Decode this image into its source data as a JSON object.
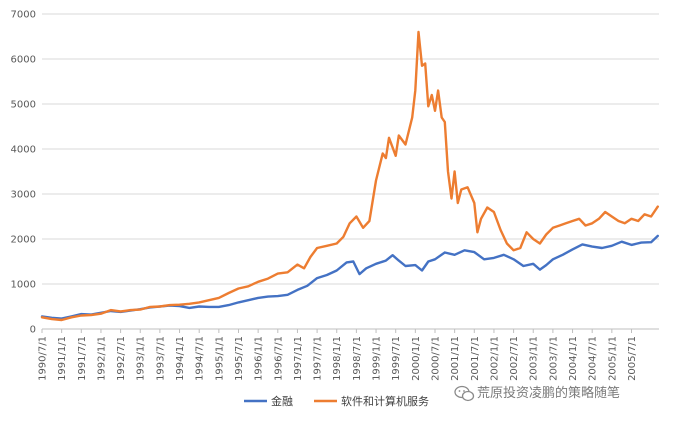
{
  "chart_data": {
    "type": "line",
    "title": "",
    "xlabel": "",
    "ylabel": "",
    "ylim": [
      0,
      7000
    ],
    "yticks": [
      0,
      1000,
      2000,
      3000,
      4000,
      5000,
      6000,
      7000
    ],
    "grid": "horizontal",
    "legend_position": "bottom",
    "x_tick_labels": [
      "1990/7/1",
      "1991/1/1",
      "1991/7/1",
      "1992/1/1",
      "1992/7/1",
      "1993/1/1",
      "1993/7/1",
      "1994/1/1",
      "1994/7/1",
      "1995/1/1",
      "1995/7/1",
      "1996/1/1",
      "1996/7/1",
      "1997/1/1",
      "1997/7/1",
      "1998/1/1",
      "1998/7/1",
      "1999/1/1",
      "1999/7/1",
      "2000/1/1",
      "2000/7/1",
      "2001/1/1",
      "2001/7/1",
      "2002/1/1",
      "2002/7/1",
      "2003/1/1",
      "2003/7/1",
      "2004/1/1",
      "2004/7/1",
      "2005/1/1",
      "2005/7/1"
    ],
    "series": [
      {
        "name": "金融",
        "color": "#4472C4",
        "points": [
          [
            1990.5,
            280
          ],
          [
            1990.75,
            250
          ],
          [
            1991.0,
            230
          ],
          [
            1991.25,
            280
          ],
          [
            1991.5,
            330
          ],
          [
            1991.75,
            320
          ],
          [
            1992.0,
            360
          ],
          [
            1992.25,
            400
          ],
          [
            1992.5,
            380
          ],
          [
            1992.75,
            410
          ],
          [
            1993.0,
            440
          ],
          [
            1993.25,
            480
          ],
          [
            1993.5,
            500
          ],
          [
            1993.75,
            520
          ],
          [
            1994.0,
            510
          ],
          [
            1994.25,
            470
          ],
          [
            1994.5,
            500
          ],
          [
            1994.75,
            490
          ],
          [
            1995.0,
            490
          ],
          [
            1995.25,
            530
          ],
          [
            1995.5,
            590
          ],
          [
            1995.75,
            640
          ],
          [
            1996.0,
            690
          ],
          [
            1996.25,
            720
          ],
          [
            1996.5,
            730
          ],
          [
            1996.75,
            760
          ],
          [
            1997.0,
            870
          ],
          [
            1997.25,
            960
          ],
          [
            1997.5,
            1130
          ],
          [
            1997.75,
            1200
          ],
          [
            1998.0,
            1300
          ],
          [
            1998.25,
            1480
          ],
          [
            1998.42,
            1500
          ],
          [
            1998.58,
            1220
          ],
          [
            1998.75,
            1350
          ],
          [
            1999.0,
            1450
          ],
          [
            1999.25,
            1520
          ],
          [
            1999.42,
            1640
          ],
          [
            1999.58,
            1520
          ],
          [
            1999.75,
            1400
          ],
          [
            2000.0,
            1420
          ],
          [
            2000.17,
            1300
          ],
          [
            2000.33,
            1500
          ],
          [
            2000.5,
            1550
          ],
          [
            2000.75,
            1700
          ],
          [
            2001.0,
            1650
          ],
          [
            2001.25,
            1750
          ],
          [
            2001.5,
            1710
          ],
          [
            2001.75,
            1550
          ],
          [
            2002.0,
            1580
          ],
          [
            2002.25,
            1650
          ],
          [
            2002.5,
            1550
          ],
          [
            2002.75,
            1400
          ],
          [
            2003.0,
            1450
          ],
          [
            2003.17,
            1320
          ],
          [
            2003.33,
            1420
          ],
          [
            2003.5,
            1550
          ],
          [
            2003.75,
            1650
          ],
          [
            2004.0,
            1770
          ],
          [
            2004.25,
            1880
          ],
          [
            2004.5,
            1830
          ],
          [
            2004.75,
            1800
          ],
          [
            2005.0,
            1850
          ],
          [
            2005.25,
            1940
          ],
          [
            2005.5,
            1870
          ],
          [
            2005.75,
            1920
          ],
          [
            2006.0,
            1930
          ],
          [
            2006.17,
            2070
          ]
        ]
      },
      {
        "name": "软件和计算机服务",
        "color": "#ED7D31",
        "points": [
          [
            1990.5,
            260
          ],
          [
            1990.75,
            220
          ],
          [
            1991.0,
            200
          ],
          [
            1991.25,
            260
          ],
          [
            1991.5,
            300
          ],
          [
            1991.75,
            310
          ],
          [
            1992.0,
            340
          ],
          [
            1992.25,
            420
          ],
          [
            1992.5,
            390
          ],
          [
            1992.75,
            420
          ],
          [
            1993.0,
            430
          ],
          [
            1993.25,
            490
          ],
          [
            1993.5,
            500
          ],
          [
            1993.75,
            530
          ],
          [
            1994.0,
            540
          ],
          [
            1994.25,
            560
          ],
          [
            1994.5,
            590
          ],
          [
            1994.75,
            640
          ],
          [
            1995.0,
            690
          ],
          [
            1995.25,
            800
          ],
          [
            1995.5,
            900
          ],
          [
            1995.75,
            950
          ],
          [
            1996.0,
            1050
          ],
          [
            1996.25,
            1120
          ],
          [
            1996.5,
            1230
          ],
          [
            1996.75,
            1260
          ],
          [
            1997.0,
            1430
          ],
          [
            1997.17,
            1350
          ],
          [
            1997.33,
            1600
          ],
          [
            1997.5,
            1800
          ],
          [
            1997.75,
            1850
          ],
          [
            1998.0,
            1900
          ],
          [
            1998.17,
            2050
          ],
          [
            1998.33,
            2350
          ],
          [
            1998.5,
            2500
          ],
          [
            1998.67,
            2250
          ],
          [
            1998.83,
            2400
          ],
          [
            1999.0,
            3300
          ],
          [
            1999.17,
            3900
          ],
          [
            1999.25,
            3800
          ],
          [
            1999.33,
            4250
          ],
          [
            1999.5,
            3850
          ],
          [
            1999.58,
            4300
          ],
          [
            1999.75,
            4100
          ],
          [
            1999.92,
            4700
          ],
          [
            2000.0,
            5300
          ],
          [
            2000.08,
            6600
          ],
          [
            2000.17,
            5850
          ],
          [
            2000.25,
            5900
          ],
          [
            2000.33,
            4950
          ],
          [
            2000.42,
            5200
          ],
          [
            2000.5,
            4850
          ],
          [
            2000.58,
            5300
          ],
          [
            2000.67,
            4700
          ],
          [
            2000.75,
            4600
          ],
          [
            2000.83,
            3500
          ],
          [
            2000.92,
            2900
          ],
          [
            2001.0,
            3500
          ],
          [
            2001.08,
            2800
          ],
          [
            2001.17,
            3100
          ],
          [
            2001.33,
            3150
          ],
          [
            2001.5,
            2800
          ],
          [
            2001.58,
            2150
          ],
          [
            2001.67,
            2450
          ],
          [
            2001.83,
            2700
          ],
          [
            2002.0,
            2600
          ],
          [
            2002.17,
            2200
          ],
          [
            2002.33,
            1900
          ],
          [
            2002.5,
            1750
          ],
          [
            2002.67,
            1800
          ],
          [
            2002.83,
            2150
          ],
          [
            2003.0,
            2000
          ],
          [
            2003.17,
            1900
          ],
          [
            2003.33,
            2100
          ],
          [
            2003.5,
            2250
          ],
          [
            2003.67,
            2300
          ],
          [
            2003.83,
            2350
          ],
          [
            2004.0,
            2400
          ],
          [
            2004.17,
            2450
          ],
          [
            2004.33,
            2300
          ],
          [
            2004.5,
            2350
          ],
          [
            2004.67,
            2450
          ],
          [
            2004.83,
            2600
          ],
          [
            2005.0,
            2500
          ],
          [
            2005.17,
            2400
          ],
          [
            2005.33,
            2350
          ],
          [
            2005.5,
            2450
          ],
          [
            2005.67,
            2400
          ],
          [
            2005.83,
            2550
          ],
          [
            2006.0,
            2500
          ],
          [
            2006.17,
            2720
          ]
        ]
      }
    ]
  },
  "watermark": {
    "text": "荒原投资凌鹏的策略随笔",
    "icon": "wechat-icon"
  }
}
